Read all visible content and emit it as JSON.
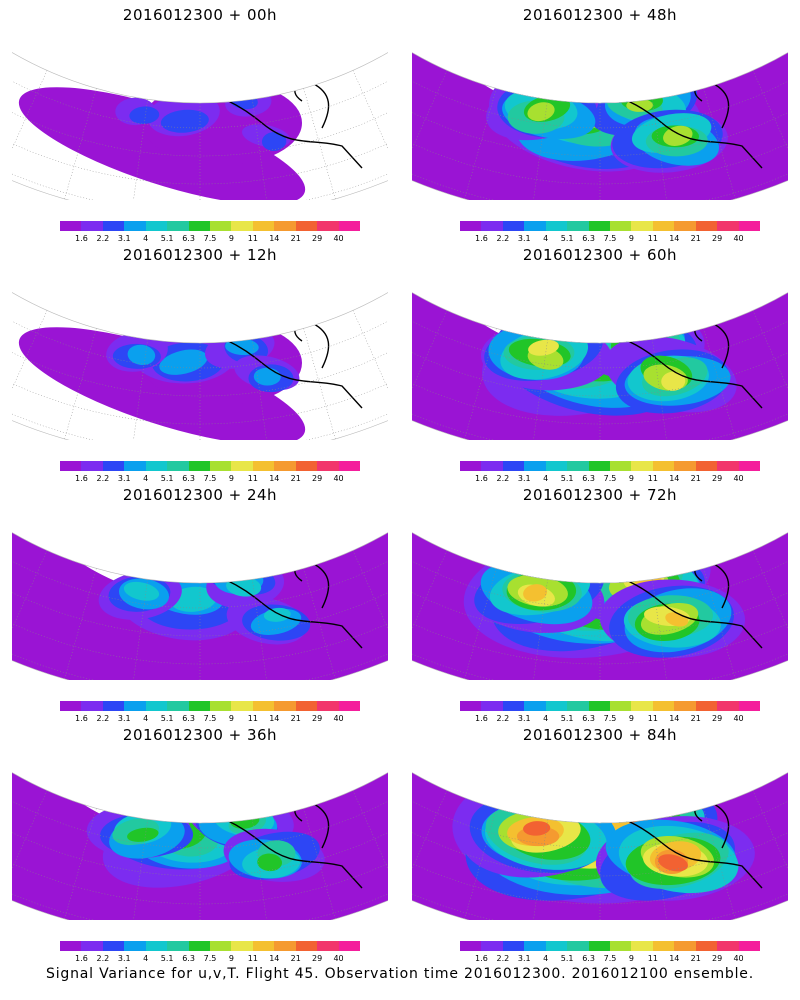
{
  "figure": {
    "caption": "Signal Variance for u,v,T. Flight 45. Observation time 2016012300. 2016012100 ensemble."
  },
  "colorbar": {
    "labels": [
      "1.6",
      "2.2",
      "3.1",
      "4",
      "5.1",
      "6.3",
      "7.5",
      "9",
      "11",
      "14",
      "21",
      "29",
      "40"
    ],
    "colors": [
      "#9a14d4",
      "#7c2cf0",
      "#2d46f5",
      "#0aa0ee",
      "#12c7ce",
      "#22c9a0",
      "#21c528",
      "#a8e030",
      "#e8e648",
      "#f4c030",
      "#f59a30",
      "#f26232",
      "#f2356c",
      "#f41e9c"
    ]
  },
  "panels": [
    {
      "title": "2016012300 + 00h",
      "intensity": 0.05
    },
    {
      "title": "2016012300 + 48h",
      "intensity": 0.62
    },
    {
      "title": "2016012300 + 12h",
      "intensity": 0.22
    },
    {
      "title": "2016012300 + 60h",
      "intensity": 0.68
    },
    {
      "title": "2016012300 + 24h",
      "intensity": 0.35
    },
    {
      "title": "2016012300 + 72h",
      "intensity": 0.78
    },
    {
      "title": "2016012300 + 36h",
      "intensity": 0.48
    },
    {
      "title": "2016012300 + 84h",
      "intensity": 0.88
    }
  ]
}
